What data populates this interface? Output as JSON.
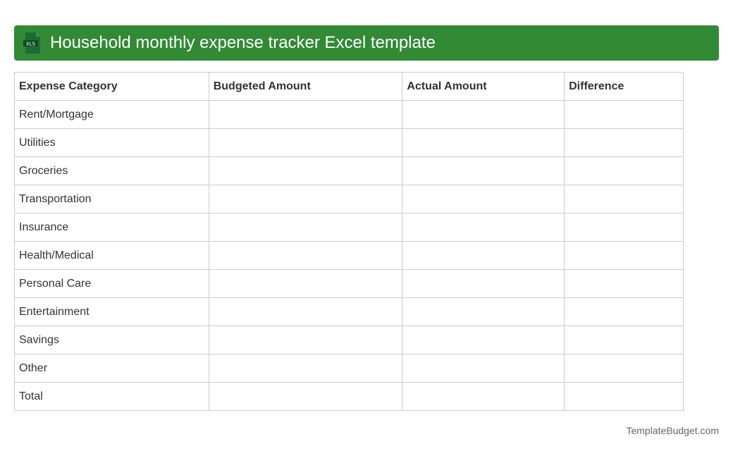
{
  "header": {
    "title": "Household monthly expense tracker Excel template",
    "icon": "xls-file-icon",
    "icon_label": "XLS",
    "color": "#328a35"
  },
  "table": {
    "columns": [
      "Expense Category",
      "Budgeted Amount",
      "Actual Amount",
      "Difference"
    ],
    "rows": [
      "Rent/Mortgage",
      "Utilities",
      "Groceries",
      "Transportation",
      "Insurance",
      "Health/Medical",
      "Personal Care",
      "Entertainment",
      "Savings",
      "Other",
      "Total"
    ]
  },
  "footer": {
    "brand": "TemplateBudget.com"
  }
}
